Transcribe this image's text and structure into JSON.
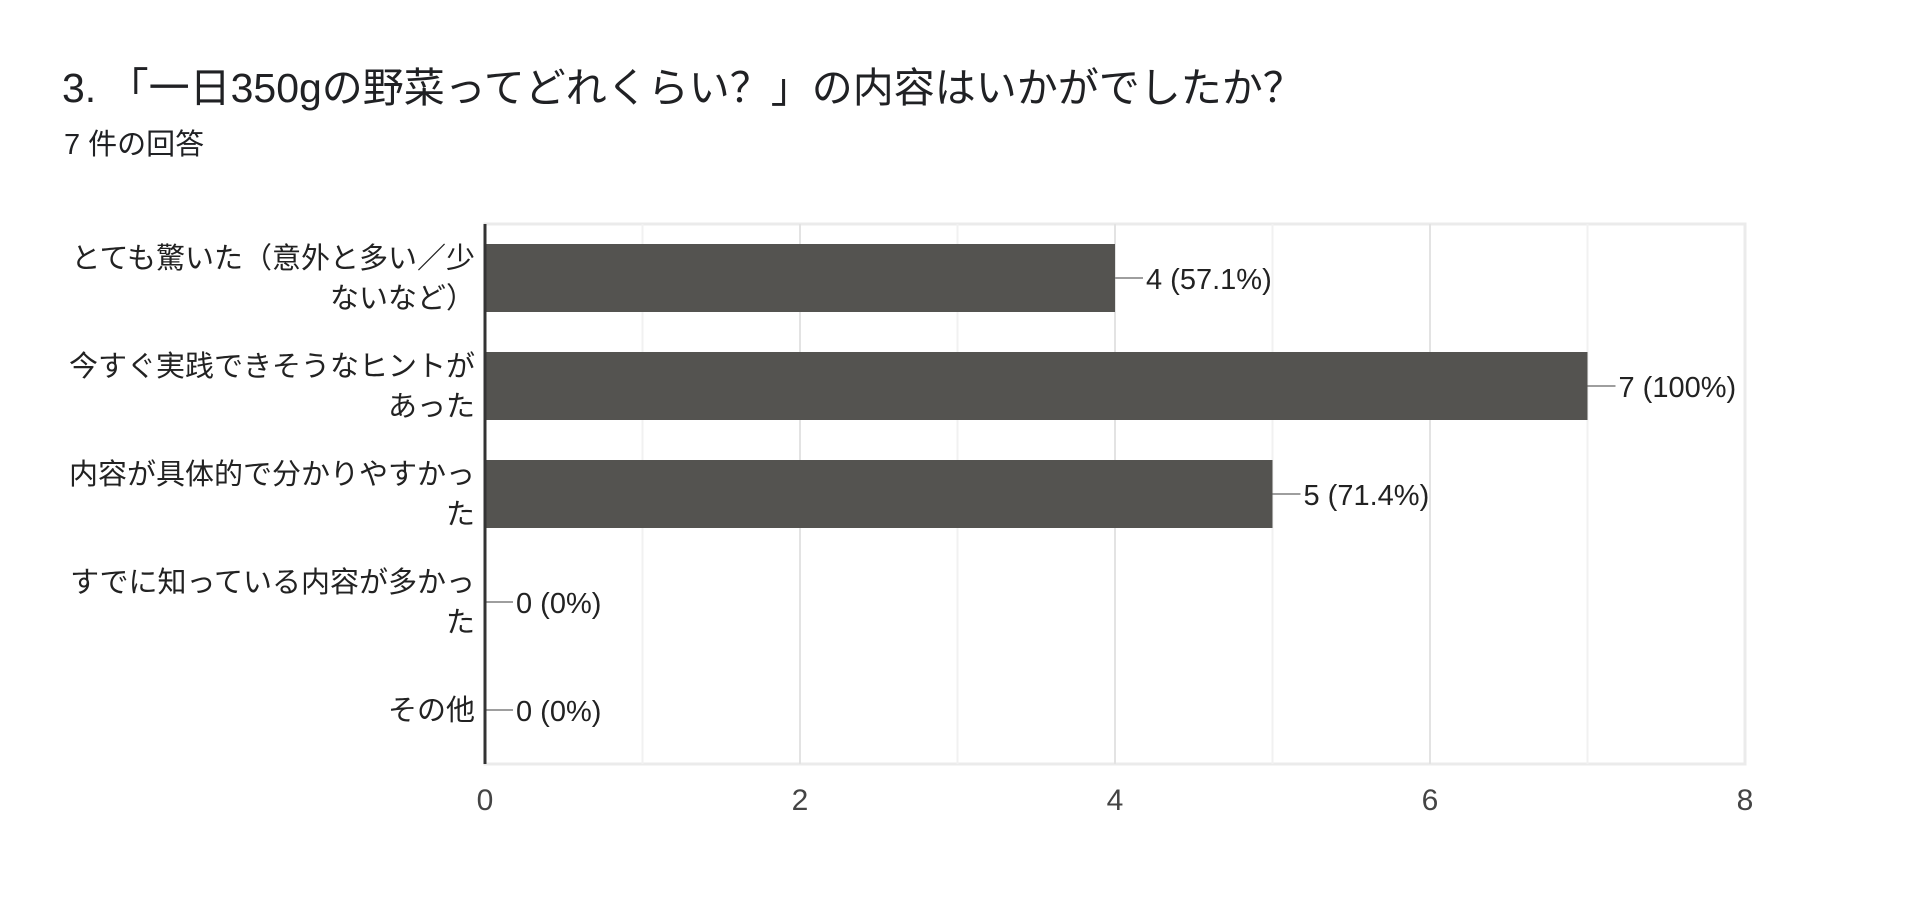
{
  "question": {
    "title": "3. 「一日350gの野菜ってどれくらい？」の内容はいかがでしたか？",
    "response_count": "7 件の回答"
  },
  "colors": {
    "bar": "#545350",
    "grid": "#ebebeb",
    "axis": "#333333",
    "leader": "#9e9e9e",
    "text": "#222222"
  },
  "chart_data": {
    "type": "bar",
    "orientation": "horizontal",
    "categories": [
      [
        "とても驚いた（意外と多い／少",
        "ないなど）"
      ],
      [
        "今すぐ実践できそうなヒントが",
        "あった"
      ],
      [
        "内容が具体的で分かりやすかっ",
        "た"
      ],
      [
        "すでに知っている内容が多かっ",
        "た"
      ],
      [
        "その他"
      ]
    ],
    "values": [
      4,
      7,
      5,
      0,
      0
    ],
    "data_labels": [
      "4 (57.1%)",
      "7 (100%)",
      "5 (71.4%)",
      "0 (0%)",
      "0 (0%)"
    ],
    "xlim": [
      0,
      8
    ],
    "xticks": [
      0,
      2,
      4,
      6,
      8
    ],
    "minor_gridlines": true,
    "grid": true,
    "legend": "none"
  }
}
